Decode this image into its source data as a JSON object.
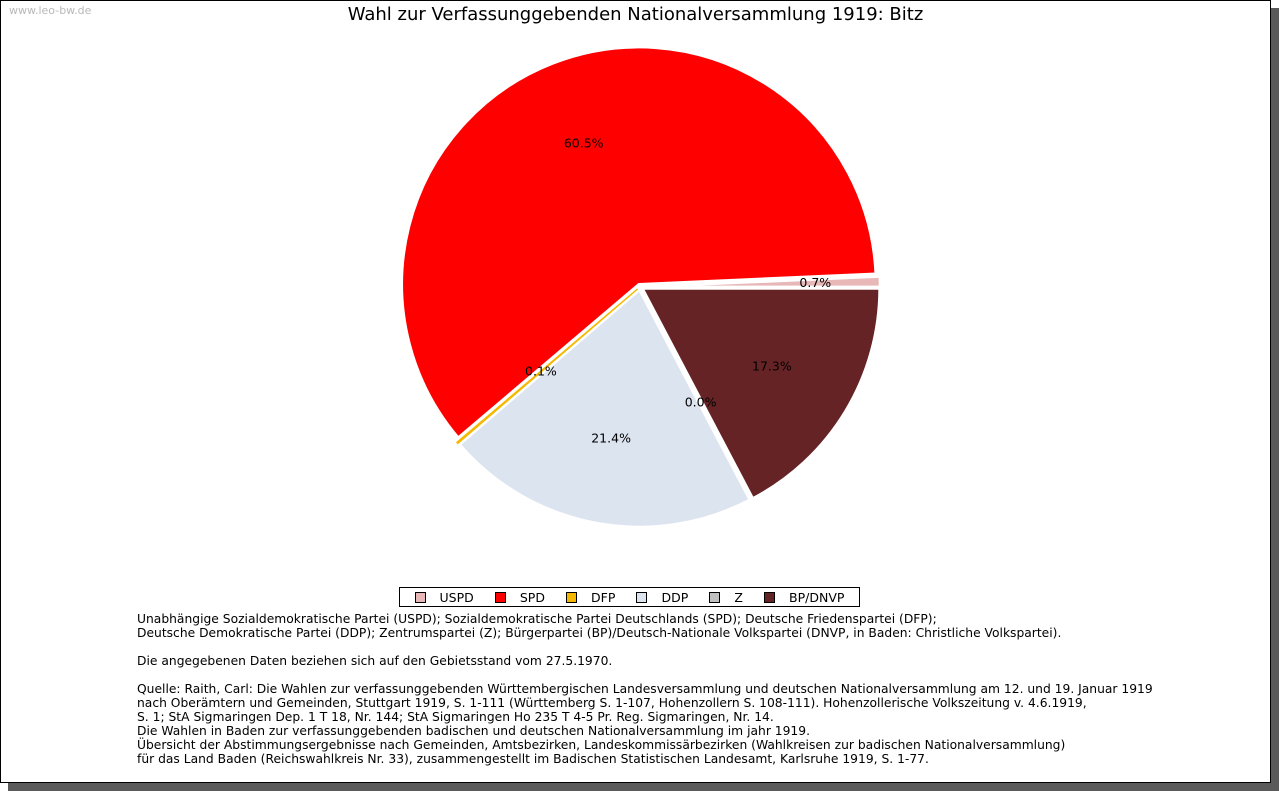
{
  "watermark": "www.leo-bw.de",
  "chart_data": {
    "type": "pie",
    "title": "Wahl zur Verfassunggebenden Nationalversammlung 1919: Bitz",
    "slices": [
      {
        "name": "USPD",
        "value": 0.7,
        "label": "0.7%",
        "color": "#e8b8b8"
      },
      {
        "name": "SPD",
        "value": 60.5,
        "label": "60.5%",
        "color": "#ff0000"
      },
      {
        "name": "DFP",
        "value": 0.1,
        "label": "0.1%",
        "color": "#f5b800"
      },
      {
        "name": "DDP",
        "value": 21.4,
        "label": "21.4%",
        "color": "#dce4f0"
      },
      {
        "name": "Z",
        "value": 0.0,
        "label": "0.0%",
        "color": "#c0c0c0"
      },
      {
        "name": "BP/DNVP",
        "value": 17.3,
        "label": "17.3%",
        "color": "#652325"
      }
    ],
    "legend_position": "bottom"
  },
  "notes": {
    "line1": "Unabhängige Sozialdemokratische Partei (USPD); Sozialdemokratische Partei Deutschlands (SPD); Deutsche Friedenspartei (DFP);",
    "line2": "Deutsche Demokratische Partei (DDP); Zentrumspartei (Z); Bürgerpartei (BP)/Deutsch-Nationale Volkspartei (DNVP, in Baden: Christliche Volkspartei).",
    "line3": "Die angegebenen Daten beziehen sich auf den Gebietsstand vom 27.5.1970.",
    "line4": "Quelle: Raith, Carl: Die Wahlen zur verfassunggebenden Württembergischen Landesversammlung und deutschen Nationalversammlung am 12. und 19. Januar 1919",
    "line5": "nach Oberämtern und Gemeinden, Stuttgart 1919, S. 1-111 (Württemberg S. 1-107, Hohenzollern S. 108-111). Hohenzollerische Volkszeitung v. 4.6.1919,",
    "line6": "S. 1; StA Sigmaringen Dep. 1 T 18, Nr. 144; StA Sigmaringen Ho 235 T 4-5 Pr. Reg. Sigmaringen, Nr. 14.",
    "line7": "Die Wahlen in Baden zur verfassunggebenden badischen und deutschen Nationalversammlung im jahr 1919.",
    "line8": "Übersicht der Abstimmungsergebnisse nach Gemeinden, Amtsbezirken, Landeskommissärbezirken (Wahlkreisen zur badischen Nationalversammlung)",
    "line9": "für das Land Baden (Reichswahlkreis Nr. 33), zusammengestellt im Badischen Statistischen Landesamt, Karlsruhe 1919, S. 1-77."
  }
}
